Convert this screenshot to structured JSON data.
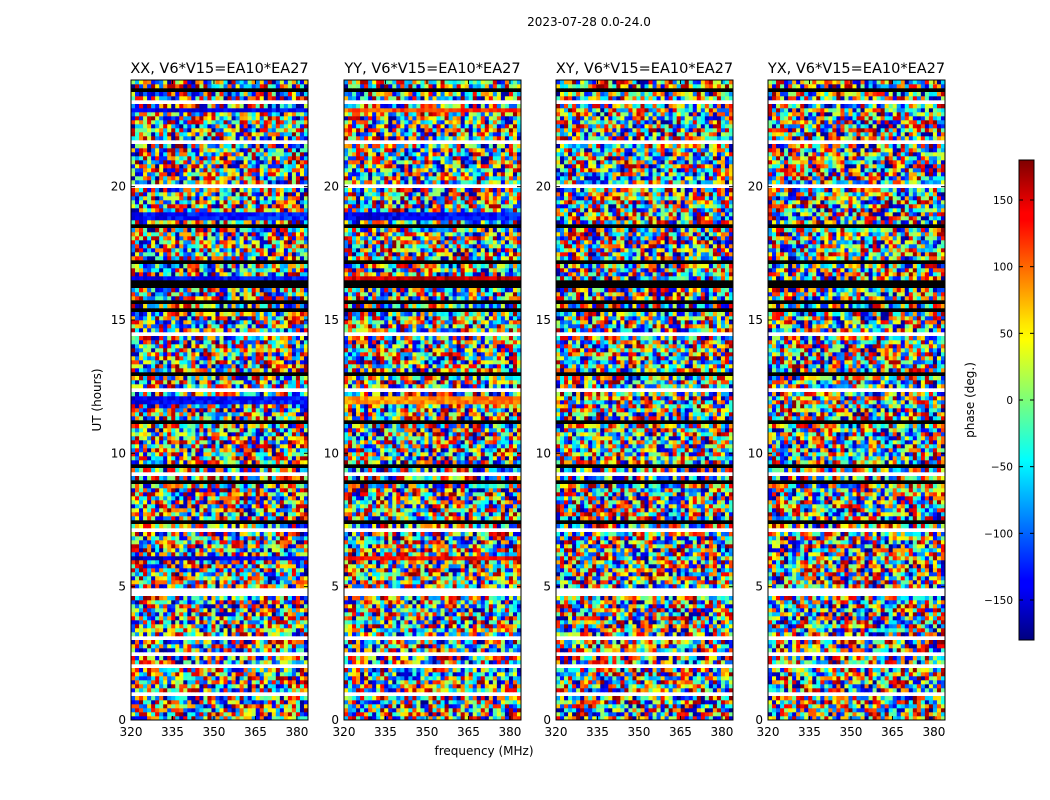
{
  "chart_data": {
    "type": "heatmap",
    "title": "2023-07-28 0.0-24.0",
    "xlabel": "frequency (MHz)",
    "ylabel": "UT (hours)",
    "xticks": [
      320,
      335,
      350,
      365,
      380
    ],
    "yticks": [
      0,
      5,
      10,
      15,
      20
    ],
    "xlim": [
      320,
      384
    ],
    "ylim": [
      0,
      24
    ],
    "colorbar": {
      "label": "phase (deg.)",
      "ticks": [
        150,
        100,
        50,
        0,
        -50,
        -100,
        -150
      ],
      "tick_labels": [
        "150",
        "100",
        "50",
        "0",
        "−50",
        "−100",
        "−150"
      ],
      "range": [
        -180,
        180
      ],
      "colormap": "jet"
    },
    "panels": [
      {
        "title": "XX, V6*V15=EA10*EA27"
      },
      {
        "title": "YY, V6*V15=EA10*EA27"
      },
      {
        "title": "XY, V6*V15=EA10*EA27"
      },
      {
        "title": "YX, V6*V15=EA10*EA27"
      }
    ],
    "note": "Panels show mostly random phase noise in time-frequency; horizontal white rows are flagged data and black rows are missing intervals, with a thick black gap near 16.3 h."
  }
}
